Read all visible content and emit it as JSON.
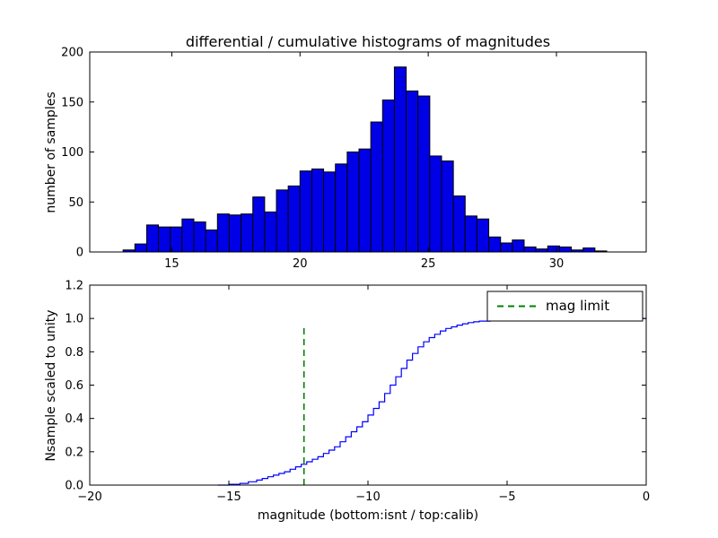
{
  "figure": {
    "background": "#ffffff",
    "frame_color": "#000000"
  },
  "chart_data": [
    {
      "type": "bar",
      "subplot": "top",
      "title": "differential / cumulative histograms of magnitudes",
      "xlabel": "",
      "ylabel": "number of samples",
      "xlim": [
        11.8,
        33.5
      ],
      "ylim": [
        0,
        200
      ],
      "xticks": [
        15,
        20,
        25,
        30
      ],
      "xtick_labels": [
        "15",
        "20",
        "25",
        "30"
      ],
      "yticks": [
        0,
        50,
        100,
        150,
        200
      ],
      "ytick_labels": [
        "0",
        "50",
        "100",
        "150",
        "200"
      ],
      "grid": false,
      "bar_color": "#0000e6",
      "bar_edge_color": "#000000",
      "bin_start": 13.1,
      "bin_width": 0.46,
      "counts": [
        2,
        8,
        27,
        25,
        25,
        33,
        30,
        22,
        38,
        37,
        38,
        55,
        40,
        62,
        66,
        81,
        83,
        80,
        88,
        100,
        103,
        130,
        152,
        185,
        161,
        156,
        96,
        91,
        56,
        36,
        33,
        15,
        9,
        12,
        5,
        3,
        6,
        5,
        2,
        4,
        1
      ]
    },
    {
      "type": "line",
      "subplot": "bottom",
      "title": "",
      "xlabel": "magnitude (bottom:isnt / top:calib)",
      "ylabel": "Nsample scaled to unity",
      "xlim": [
        -20,
        0
      ],
      "ylim": [
        0,
        1.2
      ],
      "xticks": [
        -20,
        -15,
        -10,
        -5,
        0
      ],
      "xtick_labels": [
        "−20",
        "−15",
        "−10",
        "−5",
        "0"
      ],
      "yticks": [
        0.0,
        0.2,
        0.4,
        0.6,
        0.8,
        1.0,
        1.2
      ],
      "ytick_labels": [
        "0.0",
        "0.2",
        "0.4",
        "0.6",
        "0.8",
        "1.0",
        "1.2"
      ],
      "grid": false,
      "line_color": "#0000ff",
      "step_style": "post",
      "step_points": [
        [
          -15.4,
          0.0
        ],
        [
          -15.0,
          0.005
        ],
        [
          -14.6,
          0.01
        ],
        [
          -14.3,
          0.02
        ],
        [
          -14.0,
          0.03
        ],
        [
          -13.8,
          0.04
        ],
        [
          -13.6,
          0.05
        ],
        [
          -13.4,
          0.06
        ],
        [
          -13.2,
          0.07
        ],
        [
          -13.0,
          0.08
        ],
        [
          -12.8,
          0.095
        ],
        [
          -12.6,
          0.11
        ],
        [
          -12.4,
          0.125
        ],
        [
          -12.2,
          0.14
        ],
        [
          -12.0,
          0.155
        ],
        [
          -11.8,
          0.17
        ],
        [
          -11.6,
          0.19
        ],
        [
          -11.4,
          0.21
        ],
        [
          -11.2,
          0.23
        ],
        [
          -11.0,
          0.26
        ],
        [
          -10.8,
          0.29
        ],
        [
          -10.6,
          0.32
        ],
        [
          -10.4,
          0.35
        ],
        [
          -10.2,
          0.38
        ],
        [
          -10.0,
          0.42
        ],
        [
          -9.8,
          0.46
        ],
        [
          -9.6,
          0.5
        ],
        [
          -9.4,
          0.55
        ],
        [
          -9.2,
          0.6
        ],
        [
          -9.0,
          0.65
        ],
        [
          -8.8,
          0.7
        ],
        [
          -8.6,
          0.75
        ],
        [
          -8.4,
          0.79
        ],
        [
          -8.2,
          0.83
        ],
        [
          -8.0,
          0.86
        ],
        [
          -7.8,
          0.885
        ],
        [
          -7.6,
          0.905
        ],
        [
          -7.4,
          0.925
        ],
        [
          -7.2,
          0.94
        ],
        [
          -7.0,
          0.95
        ],
        [
          -6.8,
          0.96
        ],
        [
          -6.6,
          0.968
        ],
        [
          -6.4,
          0.975
        ],
        [
          -6.2,
          0.98
        ],
        [
          -6.0,
          0.984
        ],
        [
          -5.6,
          0.988
        ],
        [
          -5.2,
          0.991
        ],
        [
          -4.6,
          0.994
        ],
        [
          -4.0,
          0.996
        ],
        [
          -3.2,
          0.998
        ],
        [
          -2.4,
          0.999
        ],
        [
          -1.9,
          1.0
        ],
        [
          0.0,
          1.0
        ]
      ],
      "mag_limit": {
        "x": -12.3,
        "y_bottom": 0.0,
        "y_top": 0.95,
        "color": "#008000",
        "dash": "7,5"
      },
      "legend": {
        "label": "mag limit",
        "position": "upper right",
        "line_color": "#008000",
        "dash": "7,5"
      }
    }
  ]
}
